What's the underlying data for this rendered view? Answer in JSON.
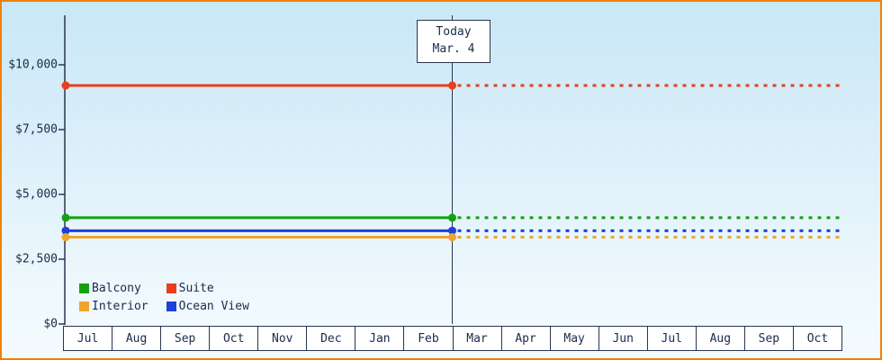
{
  "chart_data": {
    "type": "line",
    "title": "",
    "description": "Cruise cabin price history by category with projection after today",
    "x_categories": [
      "Jul",
      "Aug",
      "Sep",
      "Oct",
      "Nov",
      "Dec",
      "Jan",
      "Feb",
      "Mar",
      "Apr",
      "May",
      "Jun",
      "Jul",
      "Aug",
      "Sep",
      "Oct"
    ],
    "y_ticks": [
      {
        "label": "$0",
        "value": 0
      },
      {
        "label": "$2,500",
        "value": 2500
      },
      {
        "label": "$5,000",
        "value": 5000
      },
      {
        "label": "$7,500",
        "value": 7500
      },
      {
        "label": "$10,000",
        "value": 10000
      }
    ],
    "ylim": [
      0,
      11900
    ],
    "grid": false,
    "today": {
      "line1": "Today",
      "line2": "Mar. 4",
      "x_index": 8
    },
    "series": [
      {
        "name": "Suite",
        "value": 9200,
        "color": "#e93e1c",
        "style_before_today": "solid",
        "style_after_today": "dotted"
      },
      {
        "name": "Balcony",
        "value": 4100,
        "color": "#13a113",
        "style_before_today": "solid",
        "style_after_today": "dotted"
      },
      {
        "name": "Ocean View",
        "value": 3600,
        "color": "#1d41d6",
        "style_before_today": "solid",
        "style_after_today": "dotted"
      },
      {
        "name": "Interior",
        "value": 3350,
        "color": "#efa42d",
        "style_before_today": "solid",
        "style_after_today": "dotted"
      }
    ],
    "legend": {
      "position": "bottom-left-inside",
      "items": [
        {
          "label": "Balcony",
          "color": "#13a113"
        },
        {
          "label": "Suite",
          "color": "#e93e1c"
        },
        {
          "label": "Interior",
          "color": "#efa42d"
        },
        {
          "label": "Ocean View",
          "color": "#1d41d6"
        }
      ]
    }
  },
  "colors": {
    "frame_border": "#f08200",
    "axis": "#2a3550",
    "text": "#1a2b4a",
    "bg_top": "#c9e7f6",
    "bg_bottom": "#f4fbff"
  }
}
